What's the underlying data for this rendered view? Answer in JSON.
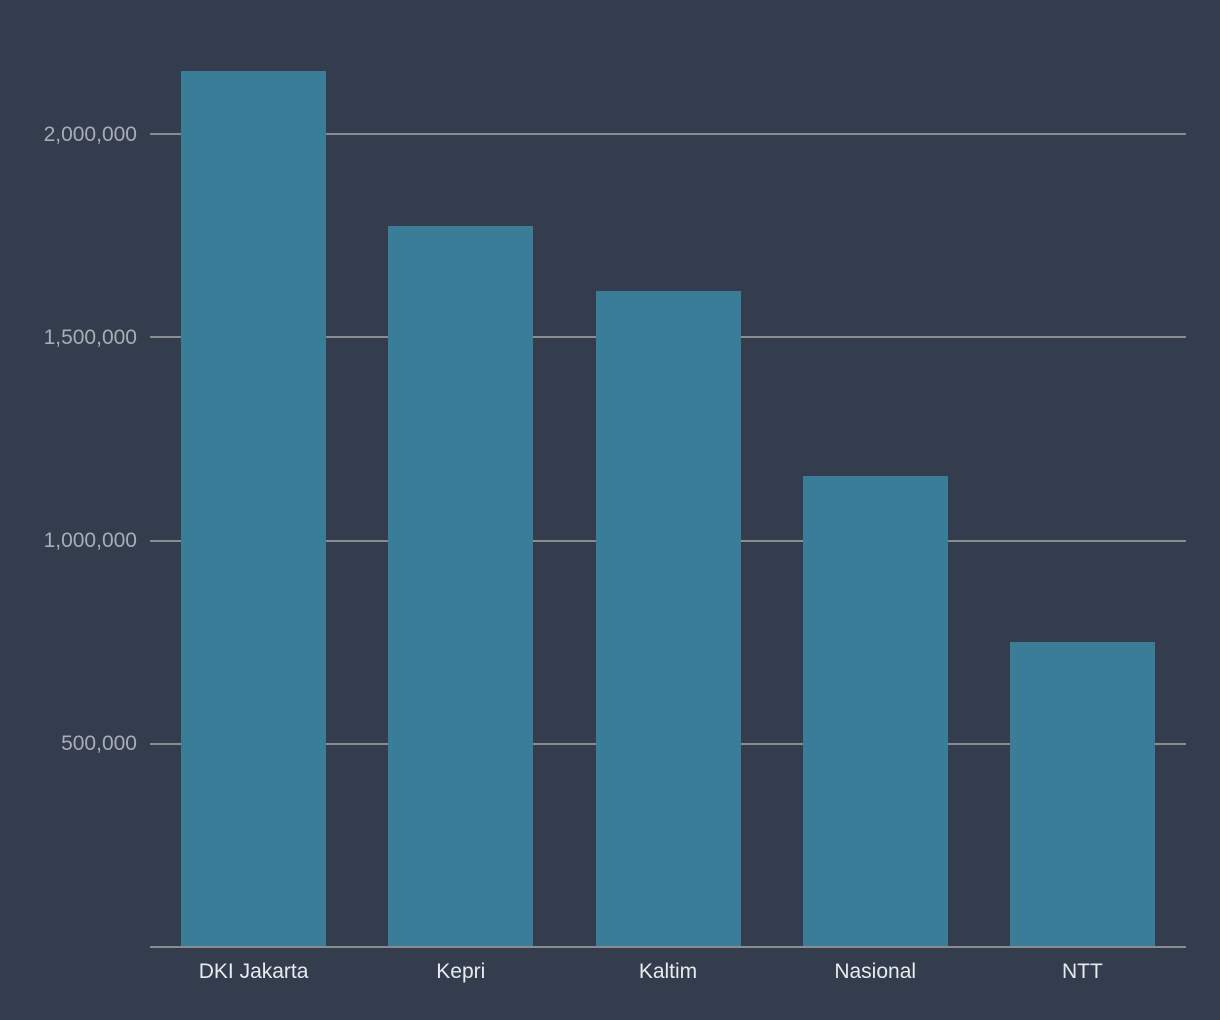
{
  "chart_data": {
    "type": "bar",
    "title": "",
    "xlabel": "",
    "ylabel": "",
    "categories": [
      "DKI Jakarta",
      "Kepri",
      "Kaltim",
      "Nasional",
      "NTT"
    ],
    "values": [
      2155000,
      1775000,
      1615000,
      1160000,
      750000
    ],
    "ylim": [
      0,
      2170000
    ],
    "grid": true,
    "legend_position": "none",
    "yticks": [
      {
        "value": 2000000,
        "label": "2,000,000"
      },
      {
        "value": 1500000,
        "label": "1,500,000"
      },
      {
        "value": 1000000,
        "label": "1,000,000"
      },
      {
        "value": 500000,
        "label": "500,000"
      }
    ]
  },
  "colors": {
    "background": "#333D4E",
    "bar": "#3A7D99",
    "gridline": "#8A8C8F",
    "y_tick_text": "#A8ADB5",
    "x_tick_text": "#E8EBEE"
  }
}
